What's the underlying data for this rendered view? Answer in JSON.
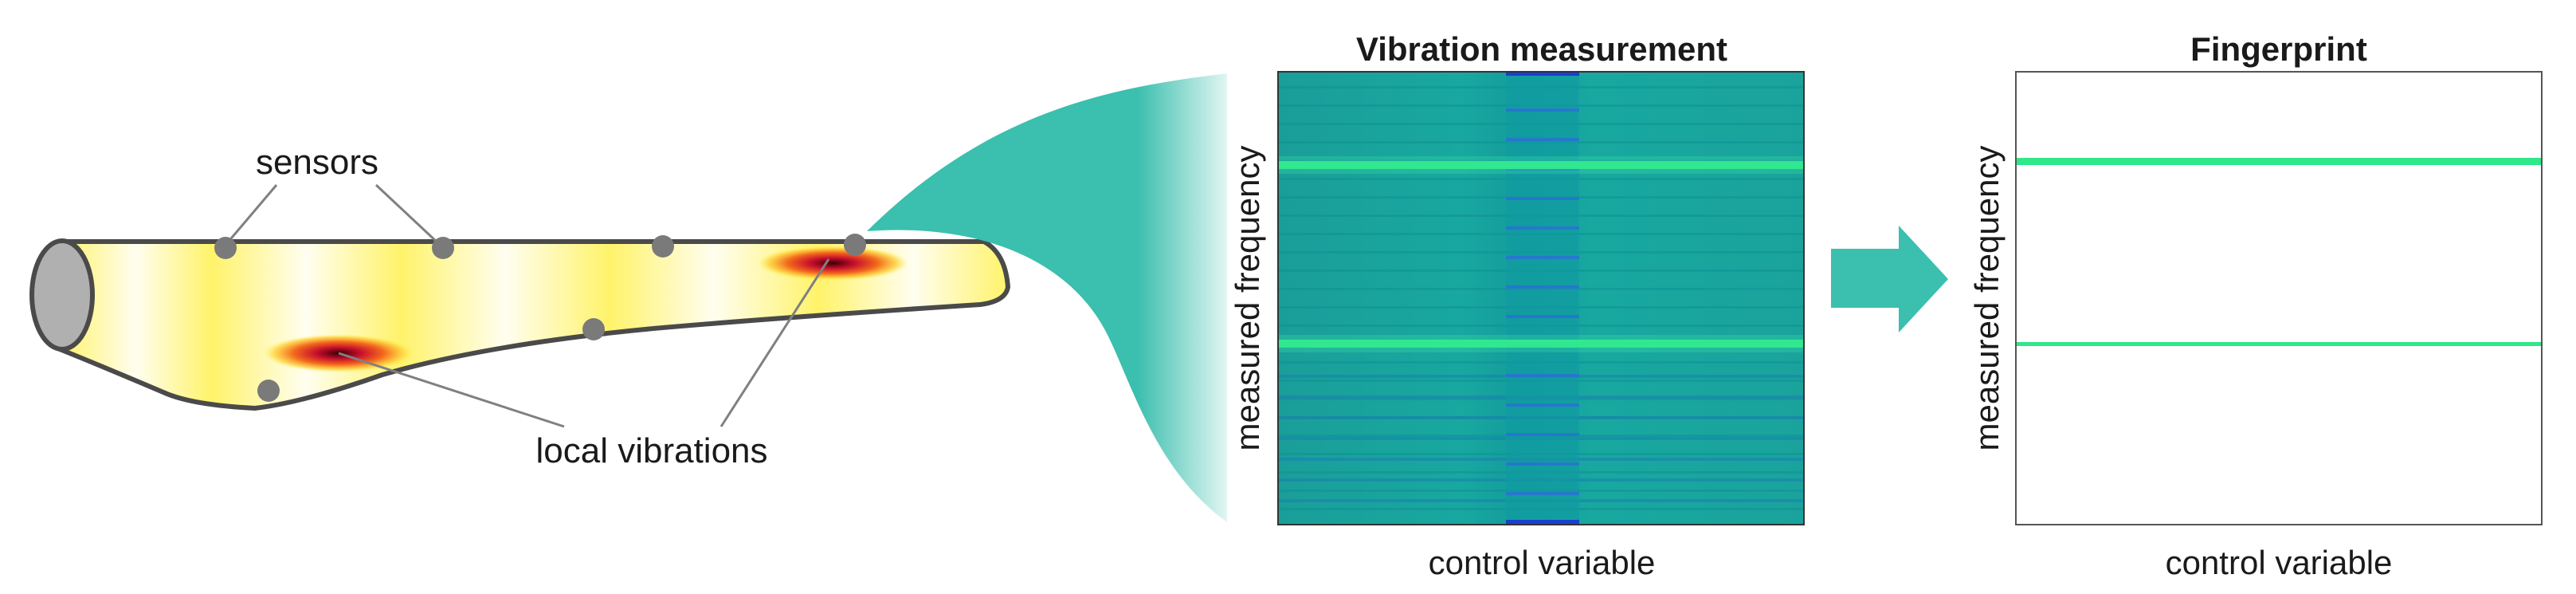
{
  "blade": {
    "sensors_label": "sensors",
    "vibrations_label": "local vibrations"
  },
  "measurement_panel": {
    "title": "Vibration measurement",
    "y_label": "measured frequency",
    "x_label": "control variable"
  },
  "fingerprint_panel": {
    "title": "Fingerprint",
    "y_label": "measured frequency",
    "x_label": "control variable"
  },
  "colors": {
    "teal": "#3bbfae",
    "heatmap_base": "#16a3a0",
    "bright_line": "#2ee88a",
    "blue_stripe": "#1a3fd0",
    "blade_fill": "#fffa9c",
    "sensor": "#7a7a7a"
  }
}
